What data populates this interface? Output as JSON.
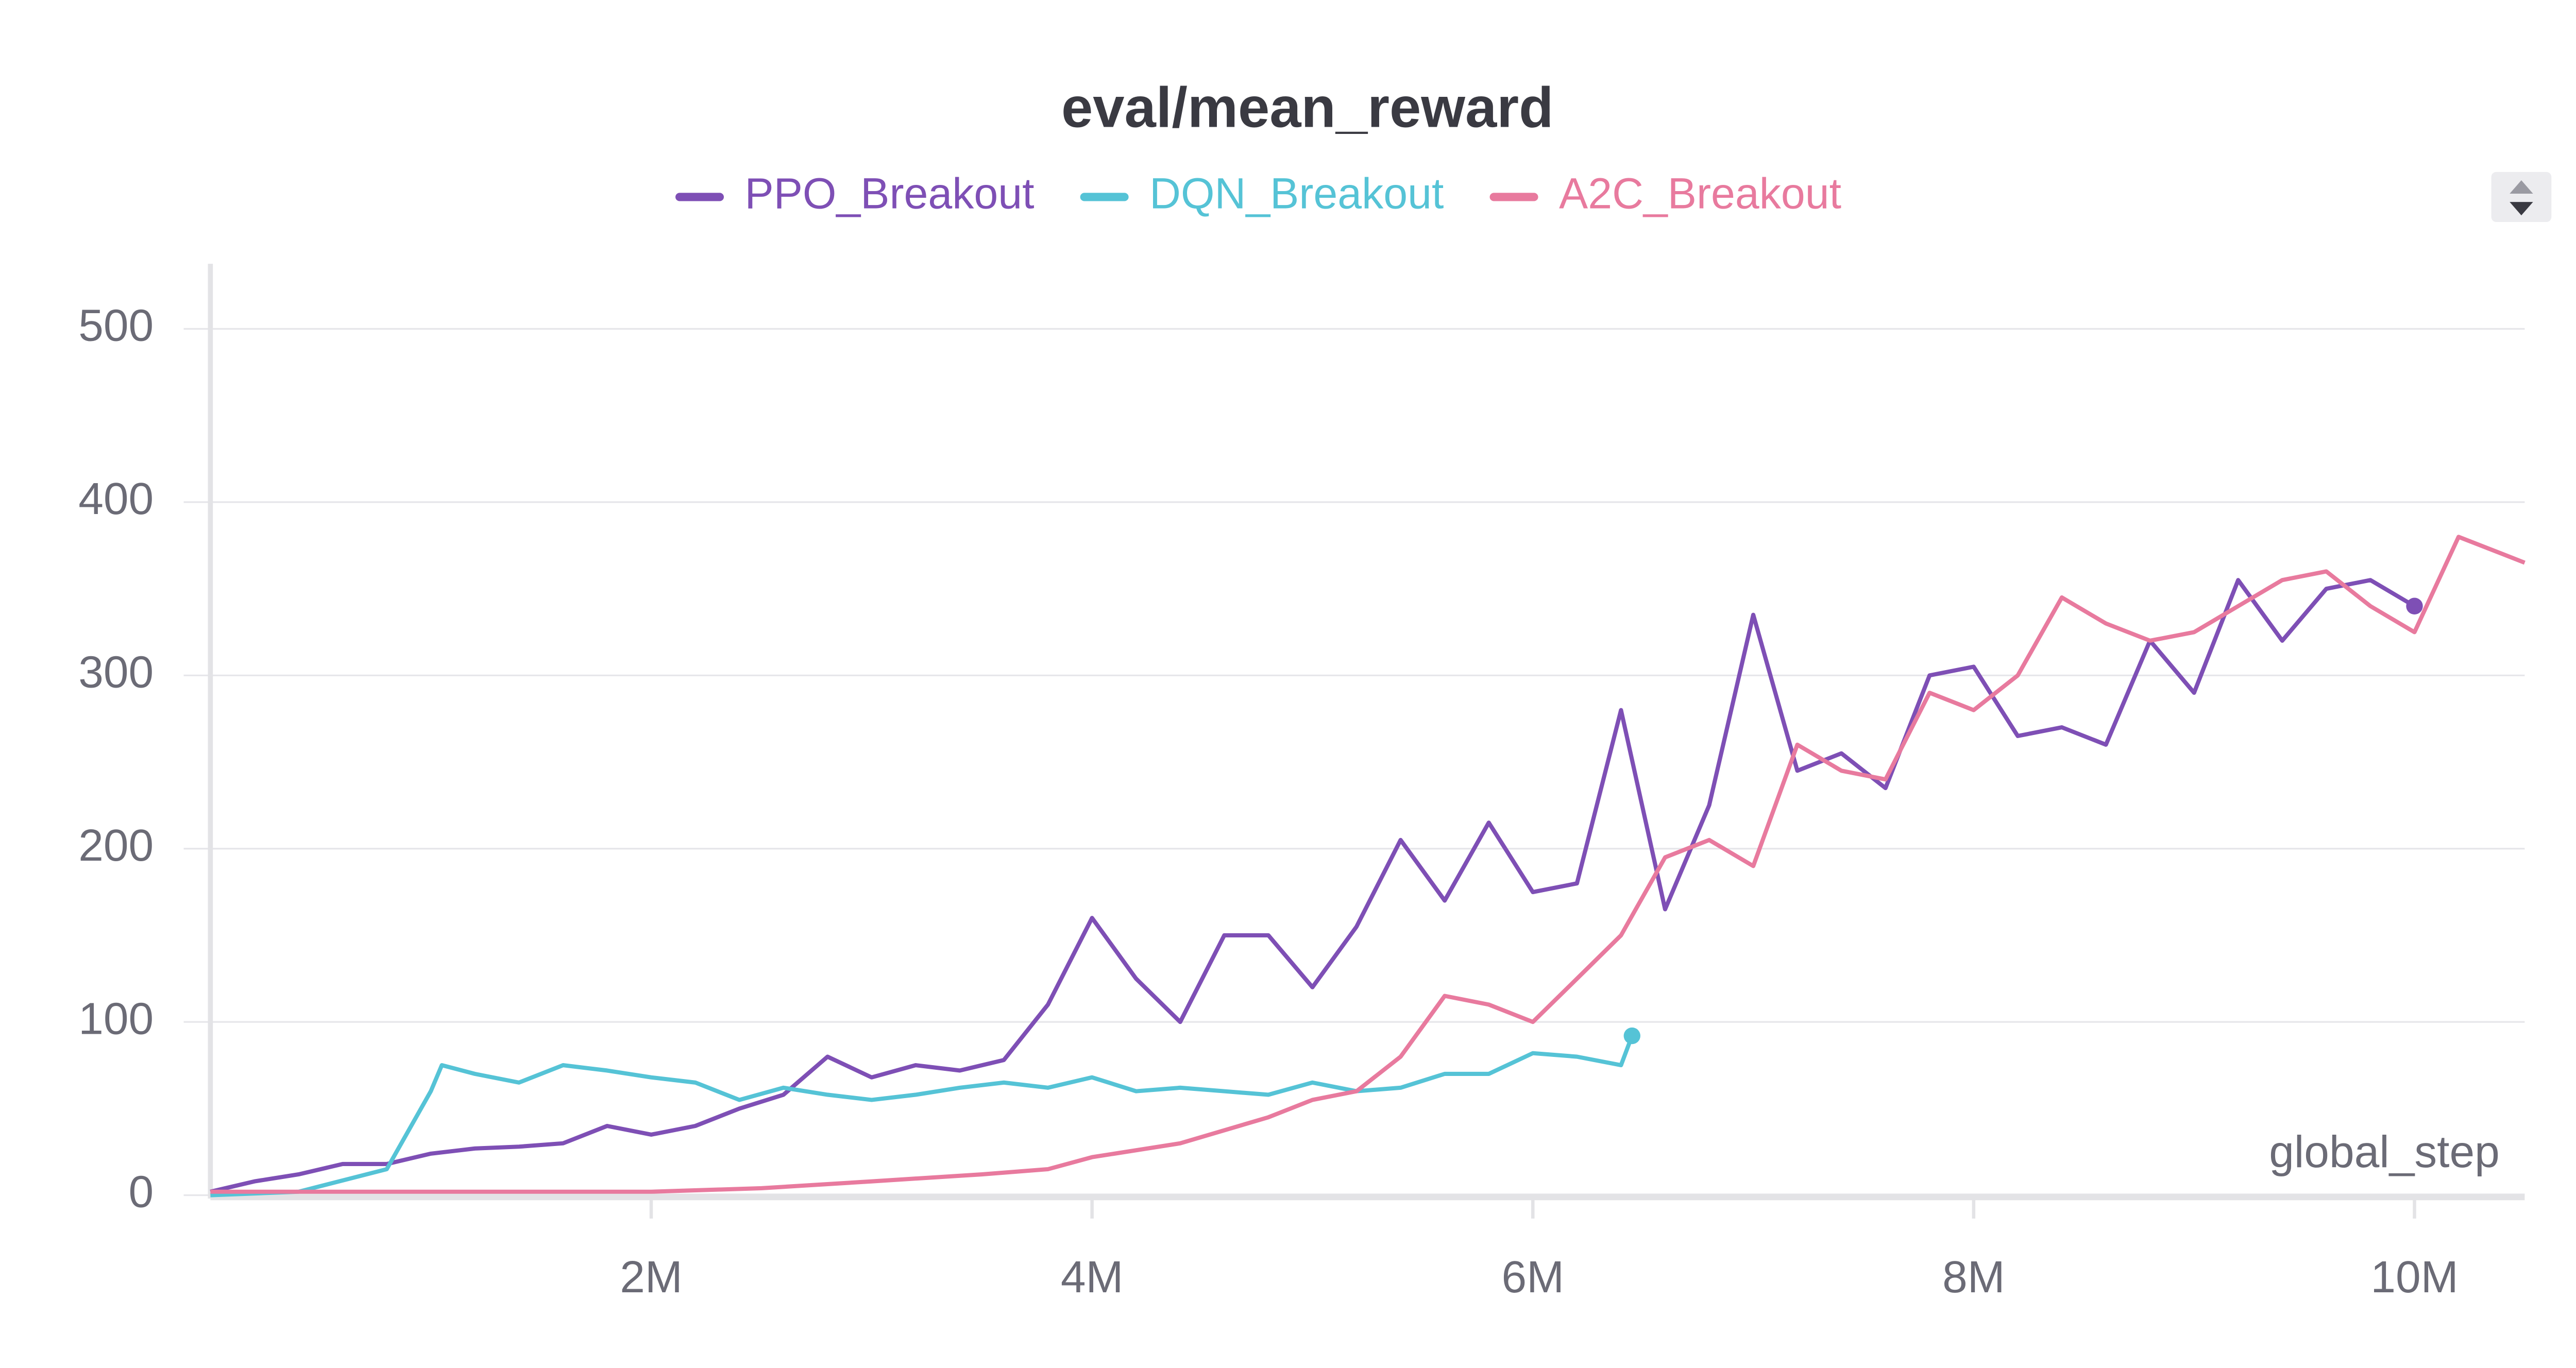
{
  "chart_data": {
    "type": "line",
    "title": "eval/mean_reward",
    "x_label": "global_step",
    "xlim": [
      0,
      10500000
    ],
    "ylim": [
      0,
      540
    ],
    "xticks": [
      {
        "value": 2000000,
        "label": "2M"
      },
      {
        "value": 4000000,
        "label": "4M"
      },
      {
        "value": 6000000,
        "label": "6M"
      },
      {
        "value": 8000000,
        "label": "8M"
      },
      {
        "value": 10000000,
        "label": "10M"
      }
    ],
    "yticks": [
      0,
      100,
      200,
      300,
      400,
      500
    ],
    "grid": true,
    "legend": "top",
    "series": [
      {
        "name": "PPO_Breakout",
        "color": "#7e4fb5",
        "x": [
          0,
          200000,
          400000,
          600000,
          800000,
          1000000,
          1200000,
          1400000,
          1600000,
          1800000,
          2000000,
          2200000,
          2400000,
          2600000,
          2800000,
          3000000,
          3200000,
          3400000,
          3600000,
          3800000,
          4000000,
          4200000,
          4400000,
          4600000,
          4800000,
          5000000,
          5200000,
          5400000,
          5600000,
          5800000,
          6000000,
          6200000,
          6400000,
          6600000,
          6800000,
          7000000,
          7200000,
          7400000,
          7600000,
          7800000,
          8000000,
          8200000,
          8400000,
          8600000,
          8800000,
          9000000,
          9200000,
          9400000,
          9600000,
          9800000,
          10000000
        ],
        "values": [
          2,
          8,
          12,
          18,
          18,
          24,
          27,
          28,
          30,
          40,
          35,
          40,
          50,
          58,
          80,
          68,
          75,
          72,
          78,
          110,
          160,
          125,
          100,
          150,
          150,
          120,
          155,
          205,
          170,
          215,
          175,
          180,
          280,
          165,
          225,
          335,
          245,
          255,
          235,
          300,
          305,
          265,
          270,
          260,
          320,
          290,
          355,
          320,
          350,
          355,
          340
        ]
      },
      {
        "name": "DQN_Breakout",
        "color": "#55c3d6",
        "x": [
          0,
          400000,
          800000,
          1000000,
          1050000,
          1200000,
          1400000,
          1600000,
          1800000,
          2000000,
          2200000,
          2400000,
          2600000,
          2800000,
          3000000,
          3200000,
          3400000,
          3600000,
          3800000,
          4000000,
          4200000,
          4400000,
          4600000,
          4800000,
          5000000,
          5200000,
          5400000,
          5600000,
          5800000,
          6000000,
          6200000,
          6400000,
          6450000
        ],
        "values": [
          0,
          2,
          15,
          60,
          75,
          70,
          65,
          75,
          72,
          68,
          65,
          55,
          62,
          58,
          55,
          58,
          62,
          65,
          62,
          68,
          60,
          62,
          60,
          58,
          65,
          60,
          62,
          70,
          70,
          82,
          80,
          75,
          92
        ]
      },
      {
        "name": "A2C_Breakout",
        "color": "#e87a9e",
        "x": [
          0,
          1000000,
          2000000,
          2500000,
          3000000,
          3500000,
          3800000,
          4000000,
          4400000,
          4800000,
          5000000,
          5200000,
          5400000,
          5600000,
          5800000,
          6000000,
          6200000,
          6400000,
          6600000,
          6800000,
          7000000,
          7200000,
          7400000,
          7600000,
          7800000,
          8000000,
          8200000,
          8400000,
          8600000,
          8800000,
          9000000,
          9200000,
          9400000,
          9600000,
          9800000,
          10000000,
          10200000,
          10400000,
          10500000
        ],
        "values": [
          2,
          2,
          2,
          4,
          8,
          12,
          15,
          22,
          30,
          45,
          55,
          60,
          80,
          115,
          110,
          100,
          125,
          150,
          195,
          205,
          190,
          260,
          245,
          240,
          290,
          280,
          300,
          345,
          330,
          320,
          325,
          340,
          355,
          360,
          340,
          325,
          380,
          370,
          365
        ]
      }
    ]
  }
}
